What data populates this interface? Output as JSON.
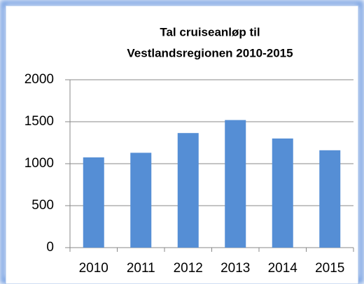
{
  "chart_data": {
    "type": "bar",
    "title": [
      "Tal cruiseanløp til",
      "Vestlandsregionen 2010-2015"
    ],
    "categories": [
      "2010",
      "2011",
      "2012",
      "2013",
      "2014",
      "2015"
    ],
    "values": [
      1075,
      1130,
      1365,
      1520,
      1300,
      1160
    ],
    "color": "#558ed5",
    "ylim": [
      0,
      2000
    ],
    "yticks": [
      0,
      500,
      1000,
      1500,
      2000
    ],
    "grid": true
  }
}
